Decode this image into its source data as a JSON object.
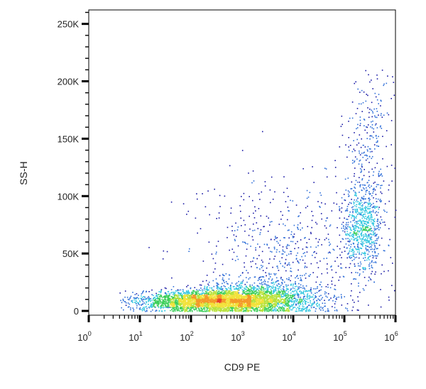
{
  "chart_data": {
    "type": "scatter",
    "title": "",
    "xlabel": "CD9 PE",
    "ylabel": "SS-H",
    "x_scale": "log",
    "xlim": [
      1,
      1000000
    ],
    "ylim": [
      0,
      262144
    ],
    "grid": false,
    "legend": "none",
    "x_ticks": [
      {
        "base": "10",
        "exp": "0",
        "value": 1
      },
      {
        "base": "10",
        "exp": "1",
        "value": 10
      },
      {
        "base": "10",
        "exp": "2",
        "value": 100
      },
      {
        "base": "10",
        "exp": "3",
        "value": 1000
      },
      {
        "base": "10",
        "exp": "4",
        "value": 10000
      },
      {
        "base": "10",
        "exp": "5",
        "value": 100000
      },
      {
        "base": "10",
        "exp": "6",
        "value": 1000000
      }
    ],
    "y_ticks": [
      {
        "label": "0",
        "value": 0
      },
      {
        "label": "50K",
        "value": 50000
      },
      {
        "label": "100K",
        "value": 100000
      },
      {
        "label": "150K",
        "value": 150000
      },
      {
        "label": "200K",
        "value": 200000
      },
      {
        "label": "250K",
        "value": 250000
      }
    ],
    "density_colors": [
      "#1a1aa6",
      "#2f6fd8",
      "#35c7e0",
      "#3ccf5a",
      "#b7e23a",
      "#f2e23a",
      "#f49a2a",
      "#e8402a"
    ],
    "populations": [
      {
        "name_hidden": true,
        "count": 3200,
        "x_log_center": 2.4,
        "x_log_sd": 0.7,
        "y_center": 9000,
        "y_sd": 4500
      },
      {
        "name_hidden": true,
        "count": 1400,
        "x_log_center": 3.4,
        "x_log_sd": 0.6,
        "y_center": 12000,
        "y_sd": 7000
      },
      {
        "name_hidden": true,
        "count": 700,
        "x_log_center": 5.35,
        "x_log_sd": 0.18,
        "y_center": 70000,
        "y_sd": 18000
      },
      {
        "name_hidden": true,
        "count": 650,
        "x_log_center": 3.8,
        "x_log_sd": 0.9,
        "y_center": 45000,
        "y_sd": 35000
      },
      {
        "name_hidden": true,
        "count": 260,
        "x_log_center": 5.45,
        "x_log_sd": 0.25,
        "y_center": 130000,
        "y_sd": 30000
      },
      {
        "name_hidden": true,
        "count": 50,
        "x_log_center": 5.6,
        "x_log_sd": 0.2,
        "y_center": 185000,
        "y_sd": 15000
      }
    ]
  }
}
